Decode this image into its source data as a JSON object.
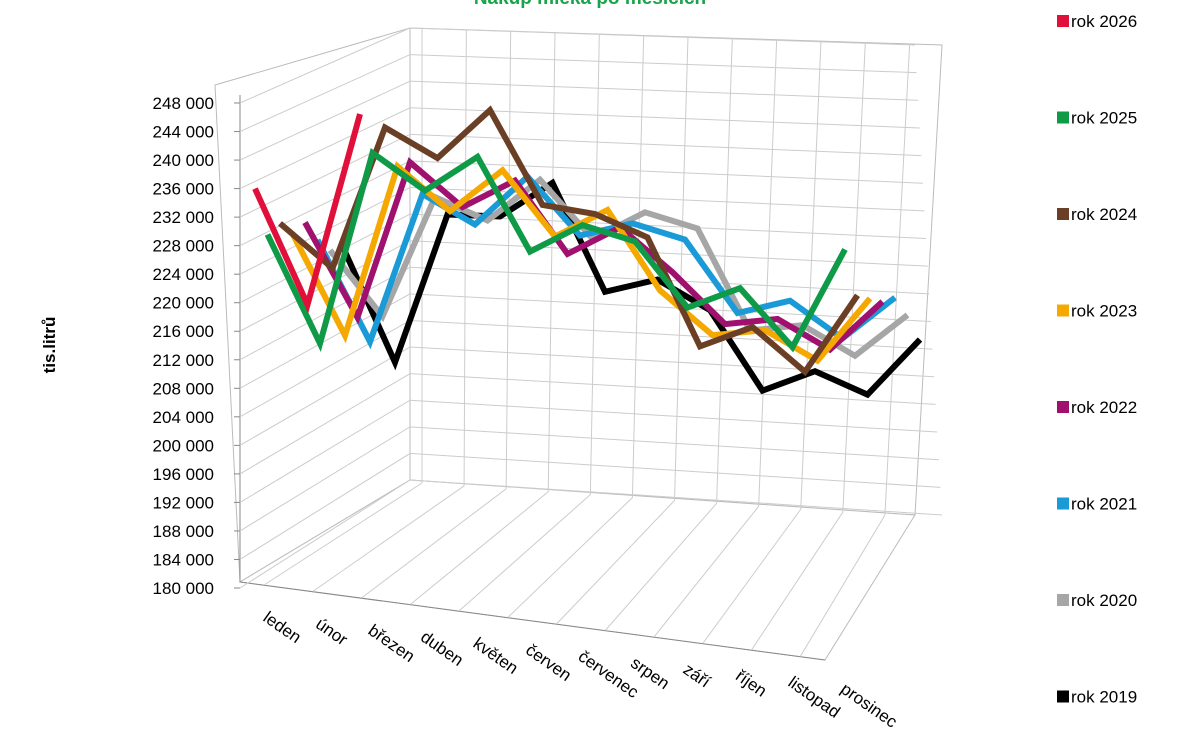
{
  "chart_data": {
    "type": "line3d",
    "title": "Nákup mléka po měsících",
    "y_axis_label": "tis.litrů",
    "categories": [
      "leden",
      "únor",
      "březen",
      "duben",
      "květen",
      "červen",
      "červenec",
      "srpen",
      "září",
      "říjen",
      "listopad",
      "prosinec"
    ],
    "ylim": [
      180000,
      248000
    ],
    "yticks": [
      {
        "value": 180000,
        "label": "180 000"
      },
      {
        "value": 184000,
        "label": "184 000"
      },
      {
        "value": 188000,
        "label": "188 000"
      },
      {
        "value": 192000,
        "label": "192 000"
      },
      {
        "value": 196000,
        "label": "196 000"
      },
      {
        "value": 200000,
        "label": "200 000"
      },
      {
        "value": 204000,
        "label": "204 000"
      },
      {
        "value": 208000,
        "label": "208 000"
      },
      {
        "value": 212000,
        "label": "212 000"
      },
      {
        "value": 216000,
        "label": "216 000"
      },
      {
        "value": 220000,
        "label": "220 000"
      },
      {
        "value": 224000,
        "label": "224 000"
      },
      {
        "value": 228000,
        "label": "228 000"
      },
      {
        "value": 232000,
        "label": "232 000"
      },
      {
        "value": 236000,
        "label": "236 000"
      },
      {
        "value": 240000,
        "label": "240 000"
      },
      {
        "value": 244000,
        "label": "244 000"
      },
      {
        "value": 248000,
        "label": "248 000"
      }
    ],
    "grid": true,
    "legend": "right",
    "series": [
      {
        "name": "rok 2026",
        "color": "#e0103a",
        "values": [
          236000,
          220000,
          247000,
          null,
          null,
          null,
          null,
          null,
          null,
          null,
          null,
          null
        ]
      },
      {
        "name": "rok 2025",
        "color": "#0f9a48",
        "values": [
          229000,
          214000,
          241000,
          236000,
          241000,
          228000,
          232000,
          230000,
          221000,
          224000,
          216000,
          230000
        ]
      },
      {
        "name": "rok 2024",
        "color": "#6b3f26",
        "values": [
          230000,
          224000,
          244000,
          240000,
          247000,
          234000,
          233000,
          230000,
          215000,
          218000,
          212000,
          223000
        ]
      },
      {
        "name": "rok 2023",
        "color": "#f5a800",
        "values": [
          228000,
          214000,
          238000,
          232000,
          238000,
          229000,
          233000,
          222000,
          216000,
          217000,
          213000,
          222000
        ]
      },
      {
        "name": "rok 2022",
        "color": "#a0106e",
        "values": [
          229000,
          216000,
          238000,
          232000,
          236000,
          226000,
          230000,
          224000,
          217000,
          218000,
          214000,
          221000
        ]
      },
      {
        "name": "rok 2021",
        "color": "#1a9ad6",
        "values": [
          226000,
          212000,
          233000,
          229000,
          236000,
          228000,
          230000,
          228000,
          218000,
          220000,
          215000,
          221000
        ]
      },
      {
        "name": "rok 2020",
        "color": "#a6a6a6",
        "values": [
          224000,
          215000,
          232000,
          229000,
          235000,
          227000,
          231000,
          229000,
          215000,
          216000,
          212000,
          218000
        ]
      },
      {
        "name": "rok 2019",
        "color": "#000000",
        "values": [
          224000,
          208000,
          229000,
          229000,
          234000,
          219000,
          221000,
          217000,
          206000,
          209000,
          206000,
          214000
        ]
      }
    ]
  }
}
